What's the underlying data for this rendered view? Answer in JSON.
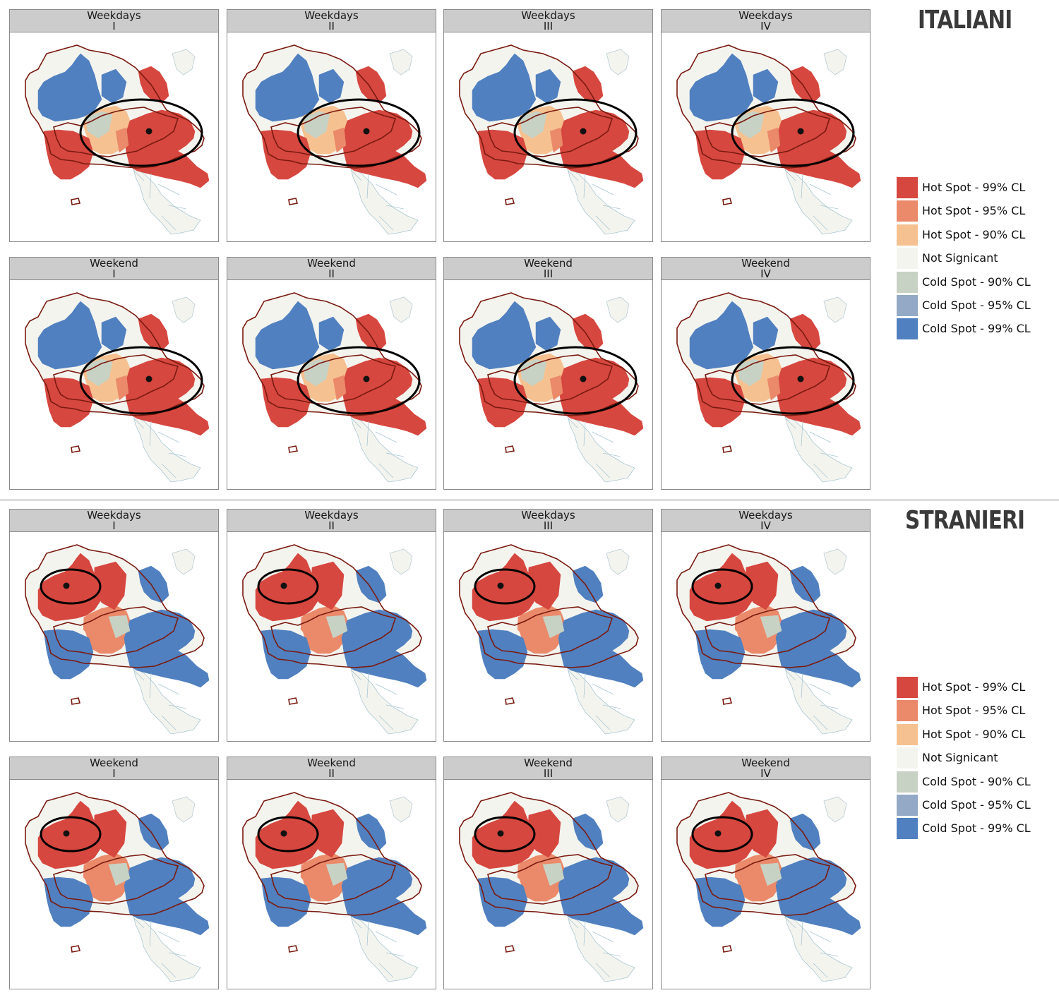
{
  "colors": {
    "hot99": "#d6473f",
    "hot95": "#ea8a6a",
    "hot90": "#f6c190",
    "ns": "#f4f4ef",
    "cold90": "#c8d2c4",
    "cold95": "#93a9c6",
    "cold99": "#5080bf",
    "boundary": "#7a1a10"
  },
  "sections": [
    {
      "title": "ITALIANI",
      "legend": [
        {
          "label": "Hot Spot - 99% CL",
          "color": "#d6473f"
        },
        {
          "label": "Hot Spot - 95% CL",
          "color": "#ea8a6a"
        },
        {
          "label": "Hot Spot - 90% CL",
          "color": "#f6c190"
        },
        {
          "label": "Not Signicant",
          "color": "#f4f4ef"
        },
        {
          "label": "Cold Spot - 90% CL",
          "color": "#c8d2c4"
        },
        {
          "label": "Cold Spot - 95% CL",
          "color": "#93a9c6"
        },
        {
          "label": "Cold Spot - 99% CL",
          "color": "#5080bf"
        }
      ],
      "panels": [
        {
          "period": "Weekdays",
          "slot": "I"
        },
        {
          "period": "Weekdays",
          "slot": "II"
        },
        {
          "period": "Weekdays",
          "slot": "III"
        },
        {
          "period": "Weekdays",
          "slot": "IV"
        },
        {
          "period": "Weekend",
          "slot": "I"
        },
        {
          "period": "Weekend",
          "slot": "II"
        },
        {
          "period": "Weekend",
          "slot": "III"
        },
        {
          "period": "Weekend",
          "slot": "IV"
        }
      ]
    },
    {
      "title": "STRANIERI",
      "legend": [
        {
          "label": "Hot Spot - 99% CL",
          "color": "#d6473f"
        },
        {
          "label": "Hot Spot - 95% CL",
          "color": "#ea8a6a"
        },
        {
          "label": "Hot Spot - 90% CL",
          "color": "#f6c190"
        },
        {
          "label": "Not Signicant",
          "color": "#f4f4ef"
        },
        {
          "label": "Cold Spot - 90% CL",
          "color": "#c8d2c4"
        },
        {
          "label": "Cold Spot - 95% CL",
          "color": "#93a9c6"
        },
        {
          "label": "Cold Spot - 99% CL",
          "color": "#5080bf"
        }
      ],
      "panels": [
        {
          "period": "Weekdays",
          "slot": "I"
        },
        {
          "period": "Weekdays",
          "slot": "II"
        },
        {
          "period": "Weekdays",
          "slot": "III"
        },
        {
          "period": "Weekdays",
          "slot": "IV"
        },
        {
          "period": "Weekend",
          "slot": "I"
        },
        {
          "period": "Weekend",
          "slot": "II"
        },
        {
          "period": "Weekend",
          "slot": "III"
        },
        {
          "period": "Weekend",
          "slot": "IV"
        }
      ]
    }
  ]
}
